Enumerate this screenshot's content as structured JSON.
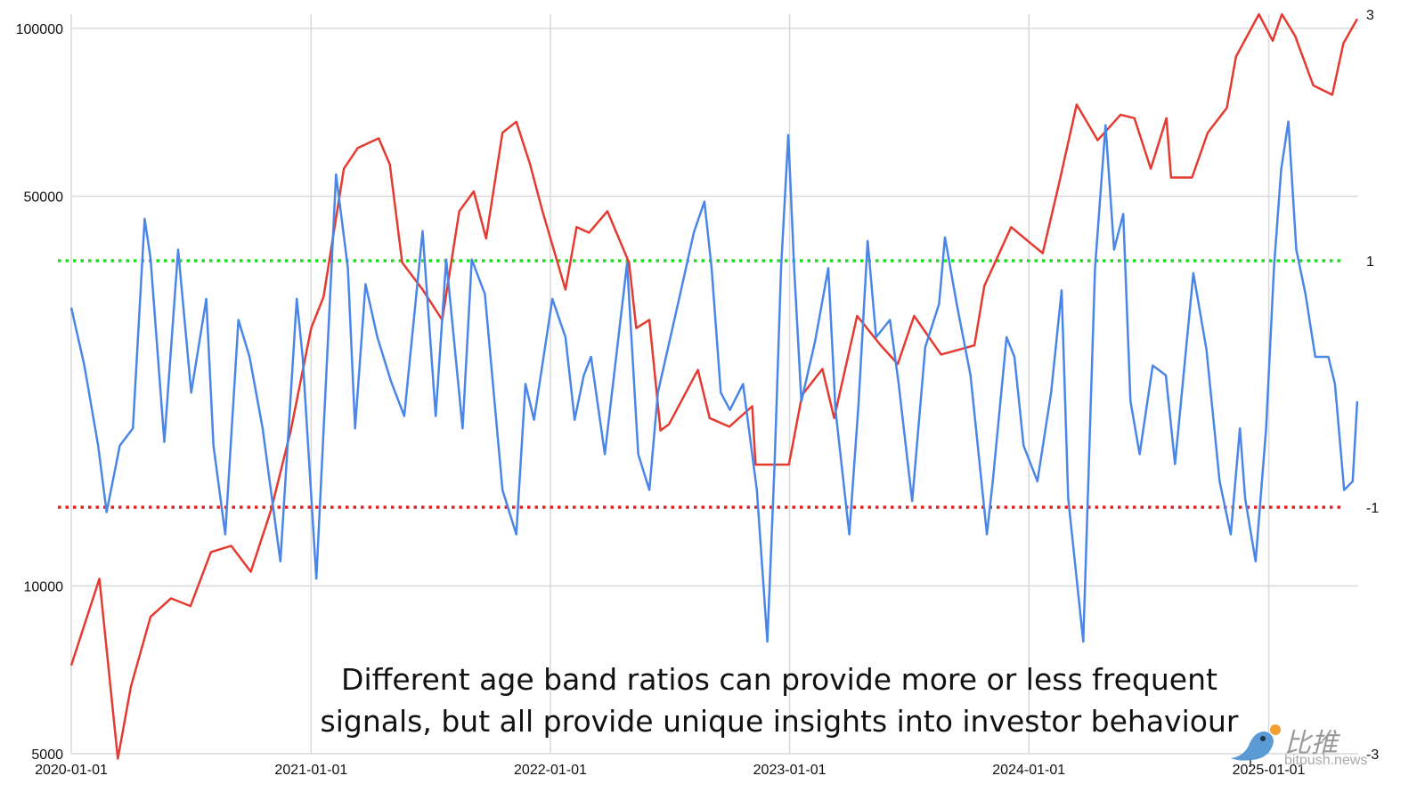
{
  "chart_data": {
    "type": "line",
    "title": "",
    "caption": "Different age band ratios can provide more or less frequent signals, but all provide unique insights into investor behaviour",
    "caption_lines": [
      "Different age band ratios can provide more or less frequent",
      "signals, but all provide unique insights into investor behaviour"
    ],
    "xlabel": "",
    "ylabel_left": "",
    "ylabel_right": "",
    "x_ticks": [
      "2020-01-01",
      "2021-01-01",
      "2022-01-01",
      "2023-01-01",
      "2024-01-01",
      "2025-01-01"
    ],
    "xlim": [
      "2020-01-01",
      "2025-05-16"
    ],
    "y_left": {
      "scale": "log",
      "lim": [
        5000,
        106000
      ],
      "ticks": [
        5000,
        10000,
        50000,
        100000
      ],
      "tick_labels": [
        "5000",
        "10000",
        "50000",
        "100000"
      ]
    },
    "y_right": {
      "scale": "linear",
      "lim": [
        -3,
        3
      ],
      "ticks": [
        -3,
        -1,
        1,
        3
      ],
      "tick_labels": [
        "-3",
        "-1",
        "1",
        "3"
      ]
    },
    "grid": true,
    "reference_lines": [
      {
        "axis": "right",
        "value": 1,
        "color": "#22dd22",
        "style": "dotted"
      },
      {
        "axis": "right",
        "value": -1,
        "color": "#dd2222",
        "style": "dotted"
      }
    ],
    "series": [
      {
        "axis": "left",
        "color": "#e53a2f",
        "points": [
          [
            "2020-01-01",
            7200
          ],
          [
            "2020-02-13",
            10300
          ],
          [
            "2020-03-12",
            4900
          ],
          [
            "2020-04-01",
            6600
          ],
          [
            "2020-05-01",
            8800
          ],
          [
            "2020-06-01",
            9500
          ],
          [
            "2020-07-01",
            9200
          ],
          [
            "2020-08-01",
            11500
          ],
          [
            "2020-09-01",
            11800
          ],
          [
            "2020-10-01",
            10600
          ],
          [
            "2020-11-01",
            13700
          ],
          [
            "2020-12-01",
            19000
          ],
          [
            "2021-01-01",
            29000
          ],
          [
            "2021-01-20",
            33000
          ],
          [
            "2021-02-20",
            56000
          ],
          [
            "2021-03-13",
            61000
          ],
          [
            "2021-04-14",
            63500
          ],
          [
            "2021-05-01",
            57000
          ],
          [
            "2021-05-20",
            38000
          ],
          [
            "2021-06-20",
            34000
          ],
          [
            "2021-07-20",
            30000
          ],
          [
            "2021-08-15",
            47000
          ],
          [
            "2021-09-06",
            51000
          ],
          [
            "2021-09-25",
            42000
          ],
          [
            "2021-10-20",
            65000
          ],
          [
            "2021-11-10",
            68000
          ],
          [
            "2021-12-01",
            57000
          ],
          [
            "2021-12-20",
            47000
          ],
          [
            "2022-01-24",
            34000
          ],
          [
            "2022-02-10",
            44000
          ],
          [
            "2022-03-01",
            43000
          ],
          [
            "2022-03-29",
            47000
          ],
          [
            "2022-05-01",
            38000
          ],
          [
            "2022-05-12",
            29000
          ],
          [
            "2022-06-01",
            30000
          ],
          [
            "2022-06-18",
            19000
          ],
          [
            "2022-07-01",
            19500
          ],
          [
            "2022-08-14",
            24400
          ],
          [
            "2022-09-01",
            20000
          ],
          [
            "2022-10-01",
            19300
          ],
          [
            "2022-11-05",
            21000
          ],
          [
            "2022-11-10",
            16500
          ],
          [
            "2022-12-31",
            16500
          ],
          [
            "2023-01-20",
            22000
          ],
          [
            "2023-02-20",
            24500
          ],
          [
            "2023-03-10",
            20000
          ],
          [
            "2023-04-14",
            30500
          ],
          [
            "2023-05-20",
            27000
          ],
          [
            "2023-06-15",
            25000
          ],
          [
            "2023-07-10",
            30500
          ],
          [
            "2023-08-20",
            26000
          ],
          [
            "2023-09-15",
            26500
          ],
          [
            "2023-10-10",
            27000
          ],
          [
            "2023-10-25",
            34500
          ],
          [
            "2023-12-05",
            44000
          ],
          [
            "2024-01-22",
            39500
          ],
          [
            "2024-02-15",
            52000
          ],
          [
            "2024-03-14",
            73000
          ],
          [
            "2024-04-15",
            63000
          ],
          [
            "2024-05-20",
            70000
          ],
          [
            "2024-06-10",
            69000
          ],
          [
            "2024-07-05",
            56000
          ],
          [
            "2024-07-29",
            69000
          ],
          [
            "2024-08-05",
            54000
          ],
          [
            "2024-09-06",
            54000
          ],
          [
            "2024-09-30",
            65000
          ],
          [
            "2024-10-29",
            72000
          ],
          [
            "2024-11-12",
            89000
          ],
          [
            "2024-12-17",
            106000
          ],
          [
            "2025-01-07",
            95000
          ],
          [
            "2025-01-21",
            106000
          ],
          [
            "2025-02-10",
            97000
          ],
          [
            "2025-03-10",
            79000
          ],
          [
            "2025-04-08",
            76000
          ],
          [
            "2025-04-25",
            94000
          ],
          [
            "2025-05-16",
            104000
          ]
        ]
      },
      {
        "axis": "right",
        "color": "#4a86e8",
        "points": [
          [
            "2020-01-01",
            0.62
          ],
          [
            "2020-01-21",
            0.15
          ],
          [
            "2020-02-11",
            -0.5
          ],
          [
            "2020-02-24",
            -1.04
          ],
          [
            "2020-03-15",
            -0.5
          ],
          [
            "2020-04-04",
            -0.36
          ],
          [
            "2020-04-22",
            1.34
          ],
          [
            "2020-05-01",
            1.02
          ],
          [
            "2020-05-22",
            -0.47
          ],
          [
            "2020-06-12",
            1.09
          ],
          [
            "2020-07-02",
            -0.07
          ],
          [
            "2020-07-25",
            0.69
          ],
          [
            "2020-08-05",
            -0.5
          ],
          [
            "2020-08-23",
            -1.22
          ],
          [
            "2020-09-12",
            0.52
          ],
          [
            "2020-09-29",
            0.22
          ],
          [
            "2020-10-19",
            -0.36
          ],
          [
            "2020-11-15",
            -1.44
          ],
          [
            "2020-12-10",
            0.69
          ],
          [
            "2020-12-19",
            0.22
          ],
          [
            "2021-01-09",
            -1.58
          ],
          [
            "2021-02-08",
            1.7
          ],
          [
            "2021-02-26",
            0.94
          ],
          [
            "2021-03-09",
            -0.36
          ],
          [
            "2021-03-25",
            0.81
          ],
          [
            "2021-04-12",
            0.38
          ],
          [
            "2021-05-03",
            0.02
          ],
          [
            "2021-05-23",
            -0.26
          ],
          [
            "2021-06-20",
            1.24
          ],
          [
            "2021-07-10",
            -0.26
          ],
          [
            "2021-07-26",
            1.01
          ],
          [
            "2021-08-20",
            -0.36
          ],
          [
            "2021-09-03",
            1.01
          ],
          [
            "2021-09-23",
            0.73
          ],
          [
            "2021-10-20",
            -0.86
          ],
          [
            "2021-11-10",
            -1.22
          ],
          [
            "2021-11-24",
            0.0
          ],
          [
            "2021-12-07",
            -0.29
          ],
          [
            "2022-01-04",
            0.69
          ],
          [
            "2022-01-24",
            0.38
          ],
          [
            "2022-02-07",
            -0.29
          ],
          [
            "2022-02-21",
            0.07
          ],
          [
            "2022-03-04",
            0.22
          ],
          [
            "2022-03-25",
            -0.57
          ],
          [
            "2022-04-08",
            0.07
          ],
          [
            "2022-04-28",
            0.98
          ],
          [
            "2022-05-15",
            -0.57
          ],
          [
            "2022-06-01",
            -0.86
          ],
          [
            "2022-06-14",
            -0.07
          ],
          [
            "2022-07-18",
            0.73
          ],
          [
            "2022-08-08",
            1.23
          ],
          [
            "2022-08-24",
            1.48
          ],
          [
            "2022-09-04",
            0.94
          ],
          [
            "2022-09-18",
            -0.07
          ],
          [
            "2022-10-02",
            -0.21
          ],
          [
            "2022-10-22",
            0.0
          ],
          [
            "2022-11-12",
            -0.86
          ],
          [
            "2022-11-28",
            -2.09
          ],
          [
            "2022-12-09",
            -0.65
          ],
          [
            "2022-12-19",
            0.94
          ],
          [
            "2022-12-30",
            2.02
          ],
          [
            "2023-01-08",
            0.94
          ],
          [
            "2023-01-19",
            -0.14
          ],
          [
            "2023-02-09",
            0.35
          ],
          [
            "2023-03-01",
            0.94
          ],
          [
            "2023-03-12",
            -0.21
          ],
          [
            "2023-04-02",
            -1.22
          ],
          [
            "2023-04-16",
            -0.17
          ],
          [
            "2023-04-30",
            1.16
          ],
          [
            "2023-05-13",
            0.38
          ],
          [
            "2023-06-03",
            0.52
          ],
          [
            "2023-06-16",
            0.02
          ],
          [
            "2023-07-07",
            -0.95
          ],
          [
            "2023-07-27",
            0.3
          ],
          [
            "2023-08-17",
            0.65
          ],
          [
            "2023-08-26",
            1.19
          ],
          [
            "2023-09-13",
            0.65
          ],
          [
            "2023-10-04",
            0.07
          ],
          [
            "2023-10-29",
            -1.22
          ],
          [
            "2023-11-07",
            -0.79
          ],
          [
            "2023-11-28",
            0.38
          ],
          [
            "2023-12-10",
            0.22
          ],
          [
            "2023-12-24",
            -0.5
          ],
          [
            "2024-01-14",
            -0.79
          ],
          [
            "2024-02-04",
            -0.07
          ],
          [
            "2024-02-20",
            0.76
          ],
          [
            "2024-03-01",
            -0.93
          ],
          [
            "2024-03-24",
            -2.09
          ],
          [
            "2024-04-11",
            0.94
          ],
          [
            "2024-04-27",
            2.1
          ],
          [
            "2024-05-10",
            1.09
          ],
          [
            "2024-05-24",
            1.38
          ],
          [
            "2024-06-04",
            -0.14
          ],
          [
            "2024-06-18",
            -0.57
          ],
          [
            "2024-07-08",
            0.15
          ],
          [
            "2024-07-28",
            0.07
          ],
          [
            "2024-08-11",
            -0.65
          ],
          [
            "2024-09-08",
            0.9
          ],
          [
            "2024-09-28",
            0.28
          ],
          [
            "2024-10-18",
            -0.79
          ],
          [
            "2024-11-04",
            -1.22
          ],
          [
            "2024-11-18",
            -0.36
          ],
          [
            "2024-11-26",
            -0.93
          ],
          [
            "2024-12-12",
            -1.44
          ],
          [
            "2024-12-28",
            -0.36
          ],
          [
            "2025-01-09",
            0.94
          ],
          [
            "2025-01-20",
            1.74
          ],
          [
            "2025-01-31",
            2.13
          ],
          [
            "2025-02-12",
            1.09
          ],
          [
            "2025-02-26",
            0.73
          ],
          [
            "2025-03-13",
            0.22
          ],
          [
            "2025-04-02",
            0.22
          ],
          [
            "2025-04-12",
            0.0
          ],
          [
            "2025-04-26",
            -0.86
          ],
          [
            "2025-05-09",
            -0.79
          ],
          [
            "2025-05-16",
            -0.14
          ]
        ]
      }
    ]
  },
  "watermark": {
    "logo_text": "比推",
    "site": "bitpush.news",
    "bird_color": "#5b9bd5",
    "coin_color": "#f0a030"
  }
}
